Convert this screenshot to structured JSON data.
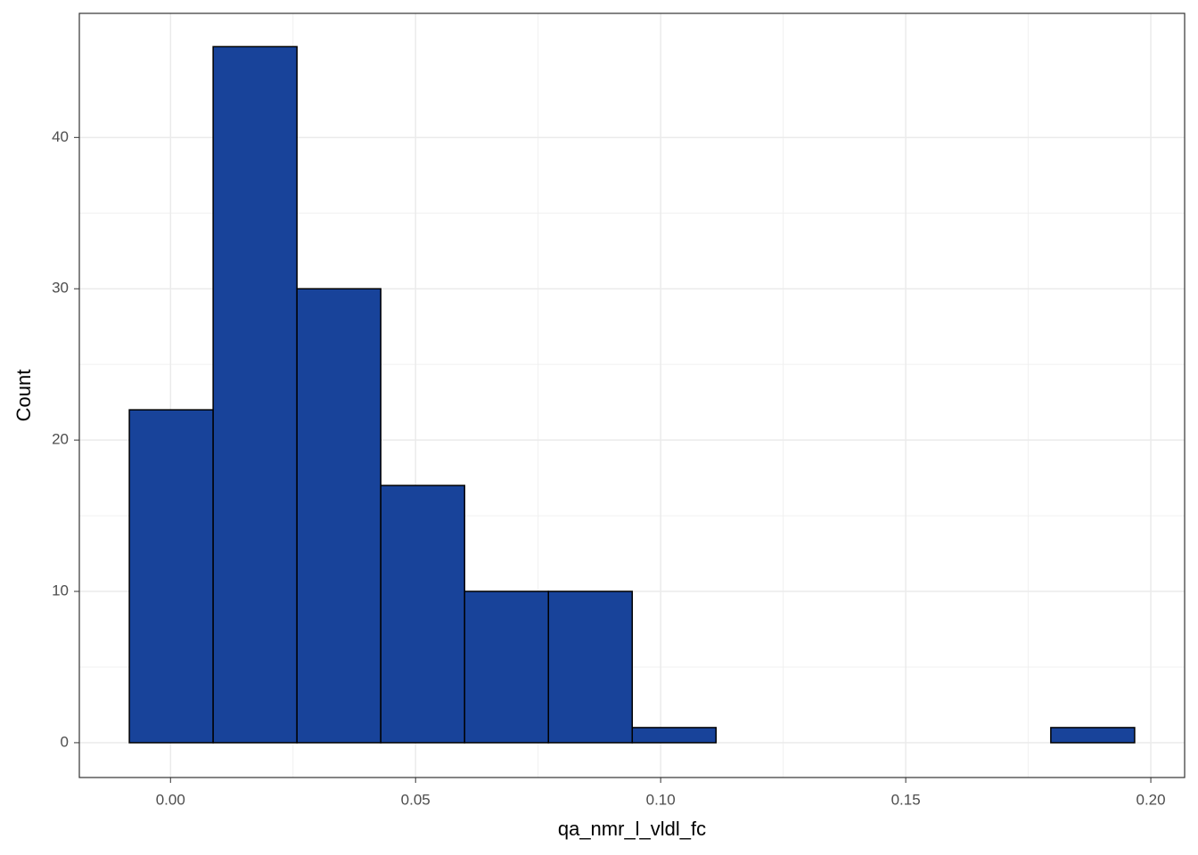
{
  "chart_data": {
    "type": "histogram",
    "x_label": "qa_nmr_l_vldl_fc",
    "y_label": "Count",
    "bins": [
      -0.0084,
      0.0087,
      0.0258,
      0.0429,
      0.06,
      0.0771,
      0.0942,
      0.1113,
      0.1284,
      0.1455,
      0.1625,
      0.1796,
      0.1967
    ],
    "counts": [
      22,
      46,
      30,
      17,
      10,
      10,
      1,
      0,
      0,
      0,
      0,
      1
    ],
    "color": "#18439a",
    "edge_color": "#000000",
    "xlim": [
      -0.0186,
      0.2069
    ],
    "ylim": [
      -2.3,
      48.2
    ],
    "xticks": [
      {
        "value": 0,
        "label": "0.00"
      },
      {
        "value": 0.05,
        "label": "0.05"
      },
      {
        "value": 0.1,
        "label": "0.10"
      },
      {
        "value": 0.15,
        "label": "0.15"
      },
      {
        "value": 0.2,
        "label": "0.20"
      }
    ],
    "yticks": [
      0,
      10,
      20,
      30,
      40
    ],
    "grid": true
  }
}
